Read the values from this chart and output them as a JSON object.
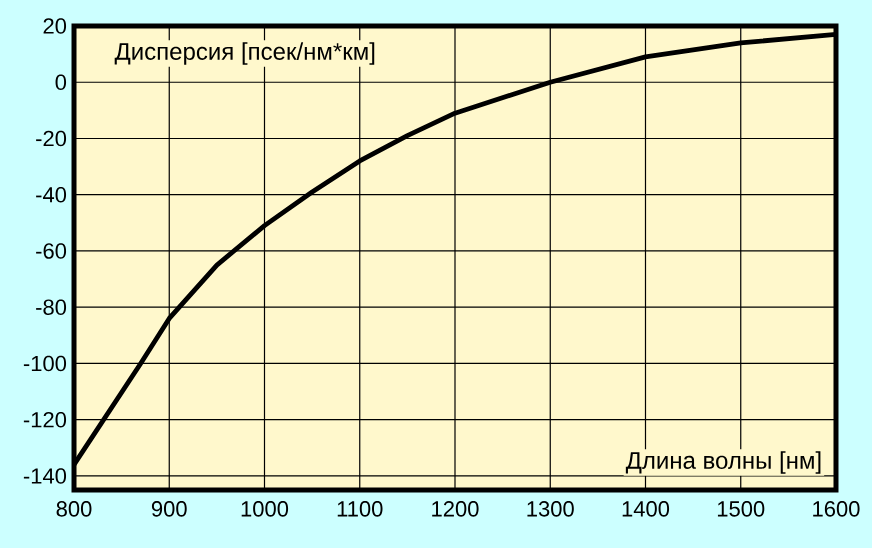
{
  "chart_data": {
    "type": "line",
    "xlabel": "Длина волны [нм]",
    "ylabel": "Дисперсия [псек/нм*км]",
    "x": [
      800,
      835,
      870,
      900,
      950,
      1000,
      1050,
      1100,
      1150,
      1200,
      1300,
      1400,
      1500,
      1600
    ],
    "values": [
      -136,
      -118,
      -100,
      -84,
      -65,
      -51,
      -39,
      -28,
      -19,
      -11,
      0,
      9,
      14,
      17
    ],
    "color": "#000000",
    "xlim": [
      800,
      1600
    ],
    "ylim": [
      -145,
      20
    ],
    "xticks": [
      800,
      900,
      1000,
      1100,
      1200,
      1300,
      1400,
      1500,
      1600
    ],
    "yticks": [
      -140,
      -120,
      -100,
      -80,
      -60,
      -40,
      -20,
      0,
      20
    ],
    "grid": true,
    "marker": "none",
    "line_style": "solid"
  }
}
